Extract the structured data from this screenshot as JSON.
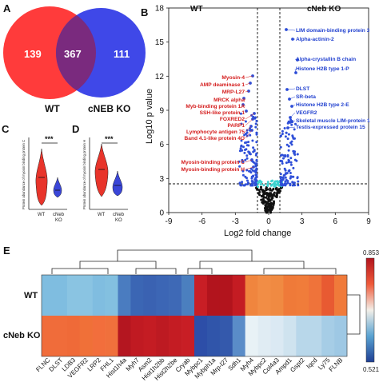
{
  "panel_labels": {
    "a": "A",
    "b": "B",
    "c": "C",
    "d": "D",
    "e": "E"
  },
  "venn": {
    "wt_only": "139",
    "shared": "367",
    "ko_only": "111",
    "label_wt": "WT",
    "label_ko": "cNEB KO",
    "colors": {
      "wt": "#ff3b3b",
      "ko": "#3f48e8",
      "overlap": "#7a2a7e"
    }
  },
  "violin_c": {
    "ylabel": "Protein abundance of myosin binding protein C",
    "significance": "***",
    "xticks": [
      "WT",
      "cNeb\nKO"
    ],
    "colors": {
      "wt": "#e8342a",
      "ko": "#3a46d8"
    }
  },
  "violin_d": {
    "ylabel": "Protein abundance of myosin binding protein H",
    "significance": "***",
    "xticks": [
      "WT",
      "cNeb\nKO"
    ],
    "colors": {
      "wt": "#e8342a",
      "ko": "#3a46d8"
    }
  },
  "volcano": {
    "group_left": "WT",
    "group_right": "cNeb KO",
    "xlabel": "Log2 fold change",
    "ylabel": "Log10 p value",
    "xticks": [
      "-9",
      "-6",
      "-3",
      "0",
      "3",
      "6",
      "9"
    ],
    "yticks": [
      "0",
      "3",
      "6",
      "9",
      "12",
      "15",
      "18"
    ],
    "left_labels": [
      "Myosin-4",
      "AMP deaminase 1",
      "MRP-L27",
      "MRCK alpha",
      "Myb-binding protein 1A",
      "SSH-like protein 1",
      "FOXRED2",
      "PARP1",
      "Lymphocyte antigen 75",
      "Band 4.1-like protein 4O",
      "Myosin-binding protein C",
      "Myosin-binding protein H"
    ],
    "right_labels": [
      "LIM domain-binding protein 3",
      "Alpha-actinin-2",
      "Alpha-crystallin B chain",
      "Histone H2B type 1-P",
      "DLST",
      "SR-beta",
      "Histone H2B type 2-E",
      "VEGFR2",
      "Skeletal muscle LIM-protein 1",
      "Testis-expressed protein 15"
    ],
    "colors": {
      "down": "#e53030",
      "up": "#2f4fd8",
      "ns": "#111111",
      "mid": "#3ad3d0",
      "label_left": "#d41c1c",
      "label_right": "#1f3fcf"
    }
  },
  "heatmap": {
    "rows": [
      "WT",
      "cNeb KO"
    ],
    "columns": [
      "FLNC",
      "DLST",
      "LDB3",
      "VEGFR2",
      "LRP2",
      "FHL1",
      "Hist1h4a",
      "Myh7",
      "Asm2",
      "Hist1h2bb",
      "Hist2h2be",
      "Cryab",
      "Mybpc1",
      "Mybph1a",
      "Mrp-l27",
      "Sdh1",
      "Myh4",
      "Mybpc2",
      "Col4a3",
      "Ampd1",
      "Gspt2",
      "Iqcd",
      "Ly75",
      "FLNB"
    ],
    "colorbar_max": "0.853",
    "colorbar_min": "0.521"
  }
}
